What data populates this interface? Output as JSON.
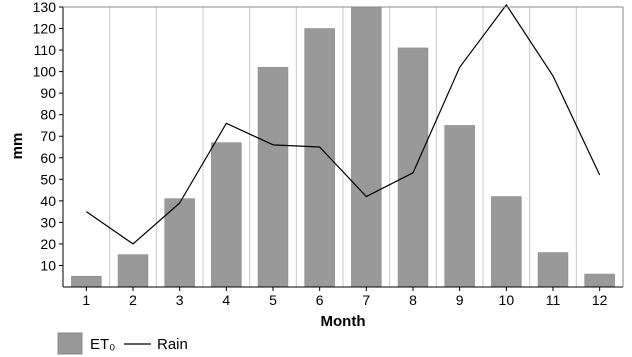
{
  "chart_data": {
    "type": "bar",
    "xlabel": "Month",
    "ylabel": "mm",
    "ylim": [
      0,
      130
    ],
    "yticks": [
      10,
      20,
      30,
      40,
      50,
      60,
      70,
      80,
      90,
      100,
      110,
      120,
      130
    ],
    "grid": "vertical",
    "categories": [
      "1",
      "2",
      "3",
      "4",
      "5",
      "6",
      "7",
      "8",
      "9",
      "10",
      "11",
      "12"
    ],
    "series": [
      {
        "name": "ET₀",
        "kind": "bar",
        "color": "#999999",
        "values": [
          5,
          15,
          41,
          67,
          102,
          120,
          132,
          111,
          75,
          42,
          16,
          6
        ]
      },
      {
        "name": "Rain",
        "kind": "line",
        "color": "#000000",
        "values": [
          35,
          20,
          39,
          76,
          66,
          65,
          42,
          53,
          102,
          131,
          98,
          52
        ]
      }
    ],
    "legend": {
      "placement": "bottom-left",
      "items": [
        "ET₀",
        "Rain"
      ]
    }
  }
}
